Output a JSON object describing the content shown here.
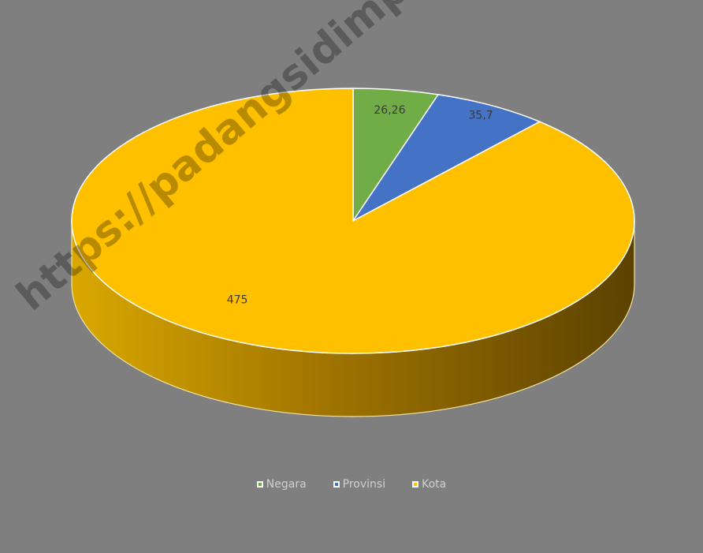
{
  "chart_data": {
    "type": "pie",
    "style": "3d",
    "categories": [
      "Negara",
      "Provinsi",
      "Kota"
    ],
    "values": [
      26.26,
      35.7,
      475
    ],
    "data_labels": [
      "26,26",
      "35,7",
      "475"
    ],
    "colors": [
      "#70ad47",
      "#4472c4",
      "#ffc000"
    ],
    "side_colors": [
      "#4a7a2f",
      "#2e5597",
      "#b88a00"
    ],
    "legend_position": "bottom",
    "title": ""
  },
  "watermark": "https://padangsidimpuankota.bps.go.id"
}
